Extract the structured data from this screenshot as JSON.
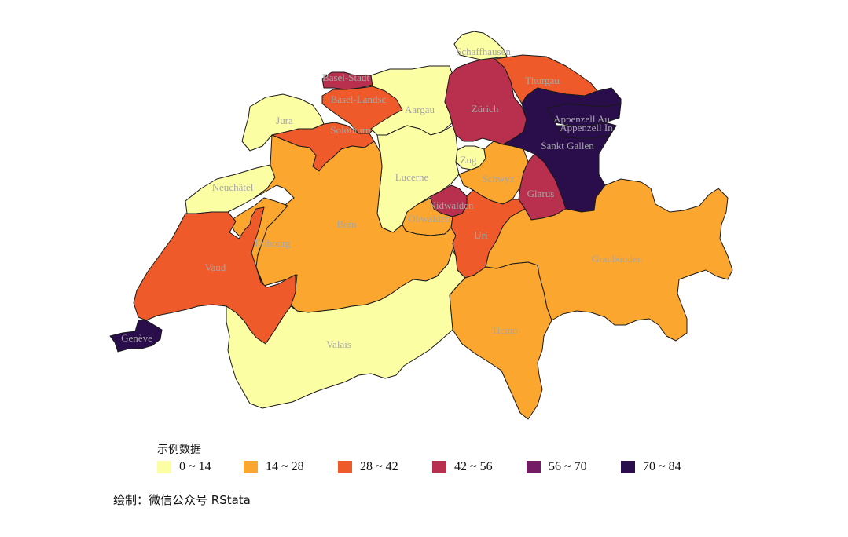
{
  "map": {
    "legend_title": "示例数据",
    "caption": "绘制：微信公众号 RStata",
    "legend": [
      {
        "label": "0 ~ 14",
        "color": "#fcfea4"
      },
      {
        "label": "14 ~ 28",
        "color": "#fba72f"
      },
      {
        "label": "28 ~ 42",
        "color": "#ef5a2a"
      },
      {
        "label": "42 ~ 56",
        "color": "#b8304d"
      },
      {
        "label": "56 ~ 70",
        "color": "#731b64"
      },
      {
        "label": "70 ~ 84",
        "color": "#2a0e4c"
      }
    ],
    "cantons": [
      {
        "name": "Schaffhausen",
        "class": 0
      },
      {
        "name": "Basel-Stadt",
        "class": 3
      },
      {
        "name": "Basel-Landschaft",
        "class": 2
      },
      {
        "name": "Thurgau",
        "class": 2
      },
      {
        "name": "Aargau",
        "class": 0
      },
      {
        "name": "Zürich",
        "class": 3
      },
      {
        "name": "Jura",
        "class": 0
      },
      {
        "name": "Solothurn",
        "class": 2
      },
      {
        "name": "Appenzell Ausserrhoden",
        "class": 5
      },
      {
        "name": "Appenzell Innerrhoden",
        "class": 5
      },
      {
        "name": "Sankt Gallen",
        "class": 5
      },
      {
        "name": "Zug",
        "class": 0
      },
      {
        "name": "Neuchâtel",
        "class": 0
      },
      {
        "name": "Lucerne",
        "class": 0
      },
      {
        "name": "Schwyz",
        "class": 1
      },
      {
        "name": "Glarus",
        "class": 3
      },
      {
        "name": "Nidwalden",
        "class": 3
      },
      {
        "name": "Obwalden",
        "class": 1
      },
      {
        "name": "Bern",
        "class": 1
      },
      {
        "name": "Fribourg",
        "class": 1
      },
      {
        "name": "Uri",
        "class": 2
      },
      {
        "name": "Vaud",
        "class": 2
      },
      {
        "name": "Graubünden",
        "class": 1
      },
      {
        "name": "Ticino",
        "class": 1
      },
      {
        "name": "Valais",
        "class": 0
      },
      {
        "name": "Genève",
        "class": 5
      }
    ],
    "labels": [
      {
        "text": "Schaffhausen",
        "canton": "Schaffhausen"
      },
      {
        "text": "Basel-Stadt",
        "canton": "Basel-Stadt"
      },
      {
        "text": "Basel-Landsc",
        "canton": "Basel-Landschaft"
      },
      {
        "text": "Thurgau",
        "canton": "Thurgau"
      },
      {
        "text": "Aargau",
        "canton": "Aargau"
      },
      {
        "text": "Zürich",
        "canton": "Zürich"
      },
      {
        "text": "Jura",
        "canton": "Jura"
      },
      {
        "text": "Solothurn",
        "canton": "Solothurn"
      },
      {
        "text": "Appenzell Au",
        "canton": "Appenzell Ausserrhoden"
      },
      {
        "text": "Appenzell In",
        "canton": "Appenzell Innerrhoden"
      },
      {
        "text": "Sankt Gallen",
        "canton": "Sankt Gallen"
      },
      {
        "text": "Zug",
        "canton": "Zug"
      },
      {
        "text": "Neuchâtel",
        "canton": "Neuchâtel"
      },
      {
        "text": "Lucerne",
        "canton": "Lucerne"
      },
      {
        "text": "Schwyz",
        "canton": "Schwyz"
      },
      {
        "text": "Glarus",
        "canton": "Glarus"
      },
      {
        "text": "Nidwalden",
        "canton": "Nidwalden"
      },
      {
        "text": "Obwalden",
        "canton": "Obwalden"
      },
      {
        "text": "Bern",
        "canton": "Bern"
      },
      {
        "text": "Fribourg",
        "canton": "Fribourg"
      },
      {
        "text": "Uri",
        "canton": "Uri"
      },
      {
        "text": "Vaud",
        "canton": "Vaud"
      },
      {
        "text": "Graubünden",
        "canton": "Graubünden"
      },
      {
        "text": "Ticino",
        "canton": "Ticino"
      },
      {
        "text": "Valais",
        "canton": "Valais"
      },
      {
        "text": "Genève",
        "canton": "Genève"
      }
    ]
  }
}
